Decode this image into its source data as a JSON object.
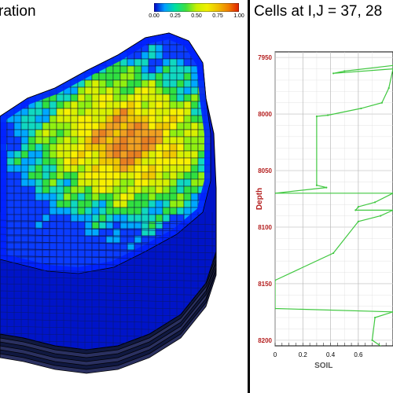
{
  "left_panel": {
    "title": "ration",
    "colorbar": {
      "ticks": [
        "0.00",
        "0.25",
        "0.50",
        "0.75",
        "1.00"
      ],
      "colors": [
        "#0000c8",
        "#00a0ff",
        "#00e0a0",
        "#40e040",
        "#c8f000",
        "#f0f000",
        "#f0c000",
        "#f08000",
        "#e02000"
      ]
    }
  },
  "right_panel": {
    "title": "Cells at I,J = 37, 28"
  },
  "chart_data": {
    "type": "line",
    "title": "Cells at I,J = 37, 28",
    "xlabel": "SOIL",
    "ylabel": "Depth",
    "xlim": [
      0,
      0.85
    ],
    "ylim": [
      8205,
      7945
    ],
    "y_inverted": true,
    "x_ticks": [
      "0",
      "0.2",
      "0.4",
      "0.6"
    ],
    "y_ticks": [
      "7950",
      "8000",
      "8050",
      "8100",
      "8150",
      "8200"
    ],
    "grid": true,
    "line_color": "#40c840",
    "axis_label_color": "#b41e1e",
    "series": [
      {
        "x": [
          0.85,
          0.5,
          0.42,
          0.85,
          0.82,
          0.77,
          0.62,
          0.38,
          0.3,
          0.3,
          0.37,
          0.0,
          0.85,
          0.72,
          0.6,
          0.58,
          0.85,
          0.76,
          0.6,
          0.42,
          0.0,
          0.0,
          0.85,
          0.72,
          0.7,
          0.82
        ],
        "y": [
          7957,
          7962,
          7964,
          7960,
          7977,
          7990,
          7995,
          8001,
          8002,
          8063,
          8065,
          8070,
          8070,
          8078,
          8082,
          8085,
          8085,
          8090,
          8095,
          8123,
          8147,
          8172,
          8175,
          8180,
          8200,
          8210
        ]
      }
    ]
  }
}
